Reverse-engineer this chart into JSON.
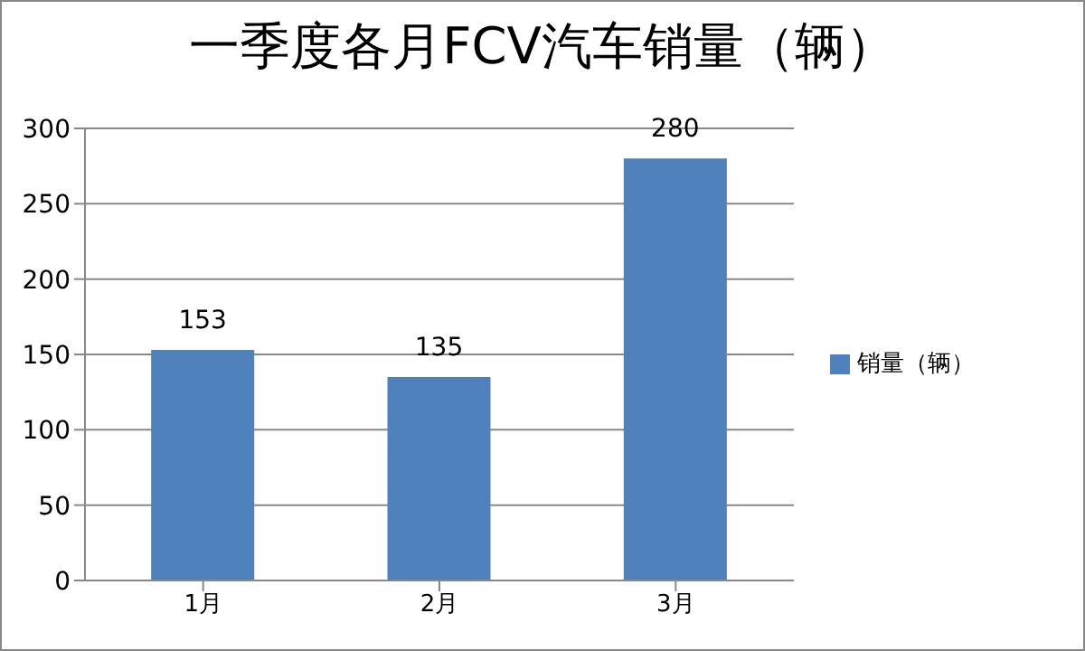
{
  "chart_data": {
    "type": "bar",
    "title": "一季度各月FCV汽车销量（辆）",
    "categories": [
      "1月",
      "2月",
      "3月"
    ],
    "series": [
      {
        "name": "销量（辆）",
        "color": "#4f81bd",
        "values": [
          153,
          135,
          280
        ]
      }
    ],
    "ylim": [
      0,
      300
    ],
    "yticks": [
      0,
      50,
      100,
      150,
      200,
      250,
      300
    ],
    "grid": "y",
    "legend": "right",
    "data_labels": true
  }
}
